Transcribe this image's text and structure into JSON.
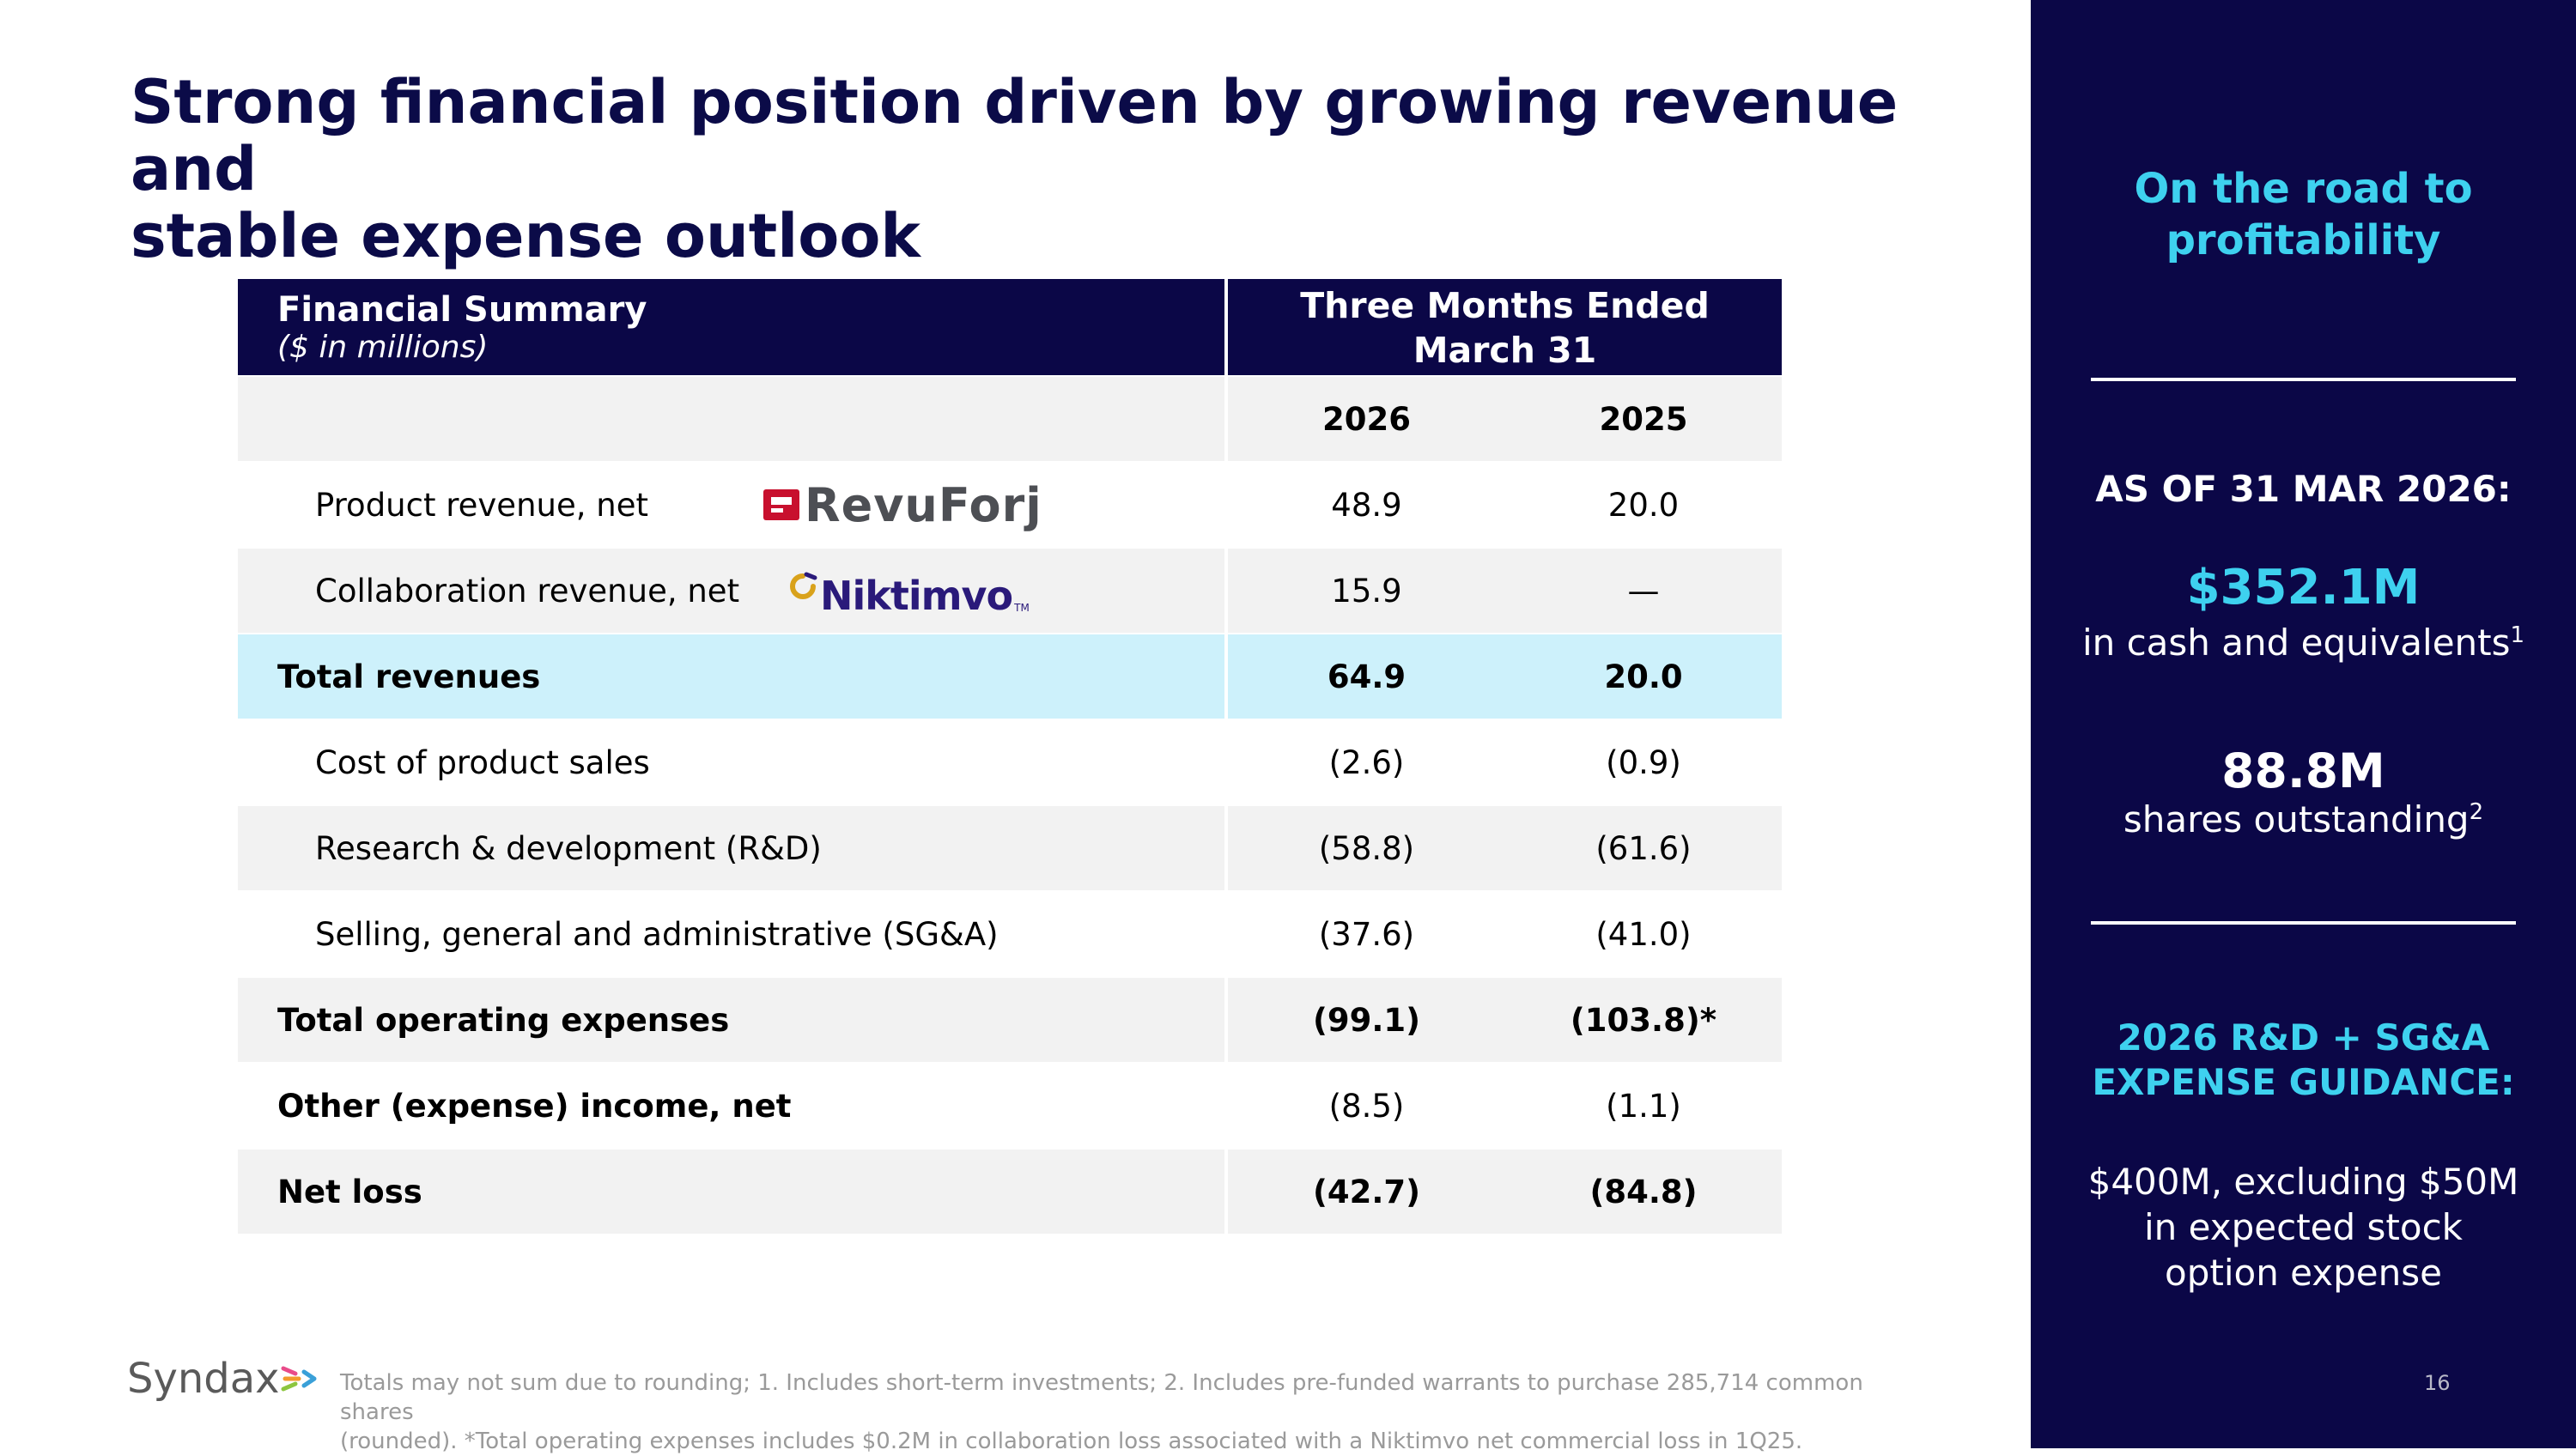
{
  "title": {
    "line1": "Strong financial position driven by growing revenue and",
    "line2": "stable expense outlook"
  },
  "table": {
    "header": {
      "label_title": "Financial Summary",
      "label_subtitle": "($ in millions)",
      "period_line1": "Three Months Ended",
      "period_line2": "March 31"
    },
    "years": [
      "2026",
      "2025"
    ],
    "rows": [
      {
        "label": "Product revenue, net",
        "v2026": "48.9",
        "v2025": "20.0",
        "logo": "RevuForj"
      },
      {
        "label": "Collaboration revenue, net",
        "v2026": "15.9",
        "v2025": "—",
        "logo": "Niktimvo"
      },
      {
        "label": "Total revenues",
        "v2026": "64.9",
        "v2025": "20.0"
      },
      {
        "label": "Cost of product sales",
        "v2026": "(2.6)",
        "v2025": "(0.9)"
      },
      {
        "label": "Research & development (R&D)",
        "v2026": "(58.8)",
        "v2025": "(61.6)"
      },
      {
        "label": "Selling, general and administrative (SG&A)",
        "v2026": "(37.6)",
        "v2025": "(41.0)"
      },
      {
        "label": "Total operating expenses",
        "v2026": "(99.1)",
        "v2025": "(103.8)*"
      },
      {
        "label": "Other (expense) income, net",
        "v2026": "(8.5)",
        "v2025": "(1.1)"
      },
      {
        "label": "Net loss",
        "v2026": "(42.7)",
        "v2025": "(84.8)"
      }
    ]
  },
  "logos": {
    "revuforj": "RevuForj",
    "niktimvo": "Niktimvo",
    "niktimvo_tm": "TM",
    "syndax": "Syndax"
  },
  "panel": {
    "heading_line1": "On the road to",
    "heading_line2": "profitability",
    "as_of": "AS OF 31 MAR 2026:",
    "cash_value": "$352.1M",
    "cash_label": "in cash and equivalents",
    "cash_footnote": "1",
    "shares_value": "88.8M",
    "shares_label": "shares outstanding",
    "shares_footnote": "2",
    "guidance_line1": "2026 R&D + SG&A",
    "guidance_line2": "EXPENSE GUIDANCE:",
    "guidance_text_line1": "$400M, excluding $50M",
    "guidance_text_line2": "in expected stock",
    "guidance_text_line3": "option expense"
  },
  "footer": {
    "note_line1": "Totals may not sum due to rounding; 1. Includes short-term investments; 2. Includes pre-funded warrants to purchase 285,714 common shares",
    "note_line2": "(rounded). *Total operating expenses includes $0.2M in collaboration loss associated with a Niktimvo net commercial loss in 1Q25.",
    "page_number": "16"
  },
  "colors": {
    "navy": "#0b0747",
    "title": "#0b0b48",
    "accent_cyan": "#3ed1ef",
    "highlight_row": "#cdf1fb",
    "revuforj_red": "#c8102e",
    "niktimvo_gold": "#d9a21b"
  }
}
